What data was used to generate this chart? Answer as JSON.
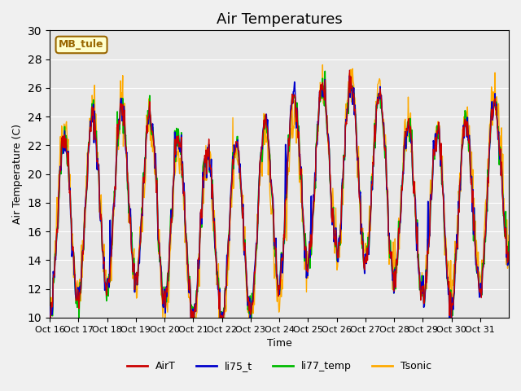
{
  "title": "Air Temperatures",
  "xlabel": "Time",
  "ylabel": "Air Temperature (C)",
  "ylim": [
    10,
    30
  ],
  "yticks": [
    10,
    12,
    14,
    16,
    18,
    20,
    22,
    24,
    26,
    28,
    30
  ],
  "xtick_labels": [
    "Oct 16",
    "Oct 17",
    "Oct 18",
    "Oct 19",
    "Oct 20",
    "Oct 21",
    "Oct 22",
    "Oct 23",
    "Oct 24",
    "Oct 25",
    "Oct 26",
    "Oct 27",
    "Oct 28",
    "Oct 29",
    "Oct 30",
    "Oct 31"
  ],
  "series_colors": {
    "AirT": "#cc0000",
    "li75_t": "#0000cc",
    "li77_temp": "#00bb00",
    "Tsonic": "#ffaa00"
  },
  "annotation_text": "MB_tule",
  "annotation_box_color": "#ffffcc",
  "annotation_box_edge": "#996600",
  "bg_color": "#e8e8e8",
  "grid_color": "#ffffff",
  "seed": 42,
  "n_points_per_day": 48,
  "n_days": 16
}
